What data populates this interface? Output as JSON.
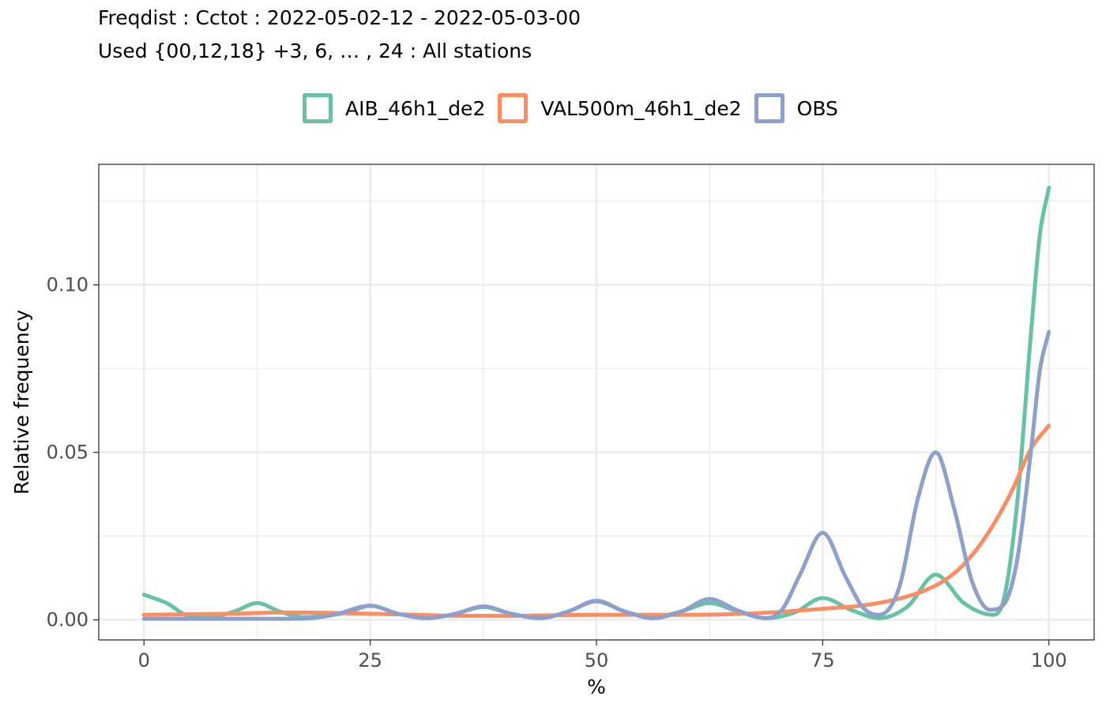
{
  "chart_data": {
    "type": "line",
    "title": "Freqdist : Cctot : 2022-05-02-12 - 2022-05-03-00",
    "subtitle": "Used {00,12,18} +3, 6, … , 24 : All stations",
    "xlabel": "%",
    "ylabel": "Relative frequency",
    "xlim": [
      -5,
      105
    ],
    "ylim": [
      -0.006,
      0.136
    ],
    "xticks": [
      0,
      25,
      50,
      75,
      100
    ],
    "xtick_labels": [
      "0",
      "25",
      "50",
      "75",
      "100"
    ],
    "yticks": [
      0.0,
      0.05,
      0.1
    ],
    "ytick_labels": [
      "0.00",
      "0.05",
      "0.10"
    ],
    "grid": true,
    "legend_position": "top",
    "series": [
      {
        "name": "AIB_46h1_de2",
        "color": "#66c2a5",
        "x": [
          0,
          2.5,
          5,
          7.5,
          10,
          12.5,
          15,
          17.5,
          20,
          22.5,
          25,
          28.1,
          31.25,
          34.4,
          37.5,
          40.6,
          43.75,
          46.9,
          50,
          53.1,
          56.25,
          59.4,
          62.5,
          65.6,
          68.75,
          71.9,
          75,
          78.1,
          81.25,
          84.4,
          87.5,
          90.6,
          93.75,
          95,
          96.5,
          98,
          99,
          100
        ],
        "y": [
          0.0075,
          0.005,
          0.0012,
          0.001,
          0.0025,
          0.005,
          0.0025,
          0.0008,
          0.0012,
          0.0022,
          0.0042,
          0.0018,
          0.0005,
          0.0018,
          0.0038,
          0.0018,
          0.0005,
          0.0025,
          0.0055,
          0.0025,
          0.0008,
          0.0025,
          0.005,
          0.0025,
          0.0005,
          0.0022,
          0.0065,
          0.003,
          0.0005,
          0.004,
          0.0135,
          0.005,
          0.0015,
          0.006,
          0.035,
          0.085,
          0.115,
          0.129
        ]
      },
      {
        "name": "VAL500m_46h1_de2",
        "color": "#fc8d62",
        "x": [
          0,
          10,
          15,
          20,
          25,
          30,
          35,
          40,
          50,
          60,
          65,
          70,
          75,
          80,
          85,
          88,
          90,
          92,
          94,
          96,
          98,
          100
        ],
        "y": [
          0.0015,
          0.0018,
          0.0022,
          0.0021,
          0.0018,
          0.0015,
          0.0012,
          0.0012,
          0.0015,
          0.0015,
          0.0017,
          0.0023,
          0.0033,
          0.0045,
          0.0075,
          0.011,
          0.015,
          0.021,
          0.029,
          0.039,
          0.051,
          0.058
        ]
      },
      {
        "name": "OBS",
        "color": "#8da0cb",
        "x": [
          0,
          5,
          10,
          15,
          18,
          21,
          25,
          28.1,
          31.25,
          34.4,
          37.5,
          40.6,
          43.75,
          46.9,
          50,
          53.1,
          56.25,
          59.4,
          62.5,
          65.6,
          68.75,
          70.5,
          72.5,
          75,
          77.5,
          79.5,
          81.25,
          83.5,
          85.5,
          87.5,
          89.5,
          91.5,
          93.5,
          95,
          96.5,
          98,
          99,
          100
        ],
        "y": [
          0.0003,
          0.0003,
          0.0003,
          0.0003,
          0.0004,
          0.0015,
          0.0042,
          0.0018,
          0.0005,
          0.0018,
          0.004,
          0.0018,
          0.0005,
          0.0025,
          0.0057,
          0.0025,
          0.0005,
          0.0025,
          0.0062,
          0.0028,
          0.0005,
          0.003,
          0.0135,
          0.026,
          0.013,
          0.0035,
          0.0015,
          0.01,
          0.036,
          0.05,
          0.0335,
          0.0115,
          0.003,
          0.0045,
          0.018,
          0.05,
          0.0745,
          0.086
        ]
      }
    ]
  }
}
